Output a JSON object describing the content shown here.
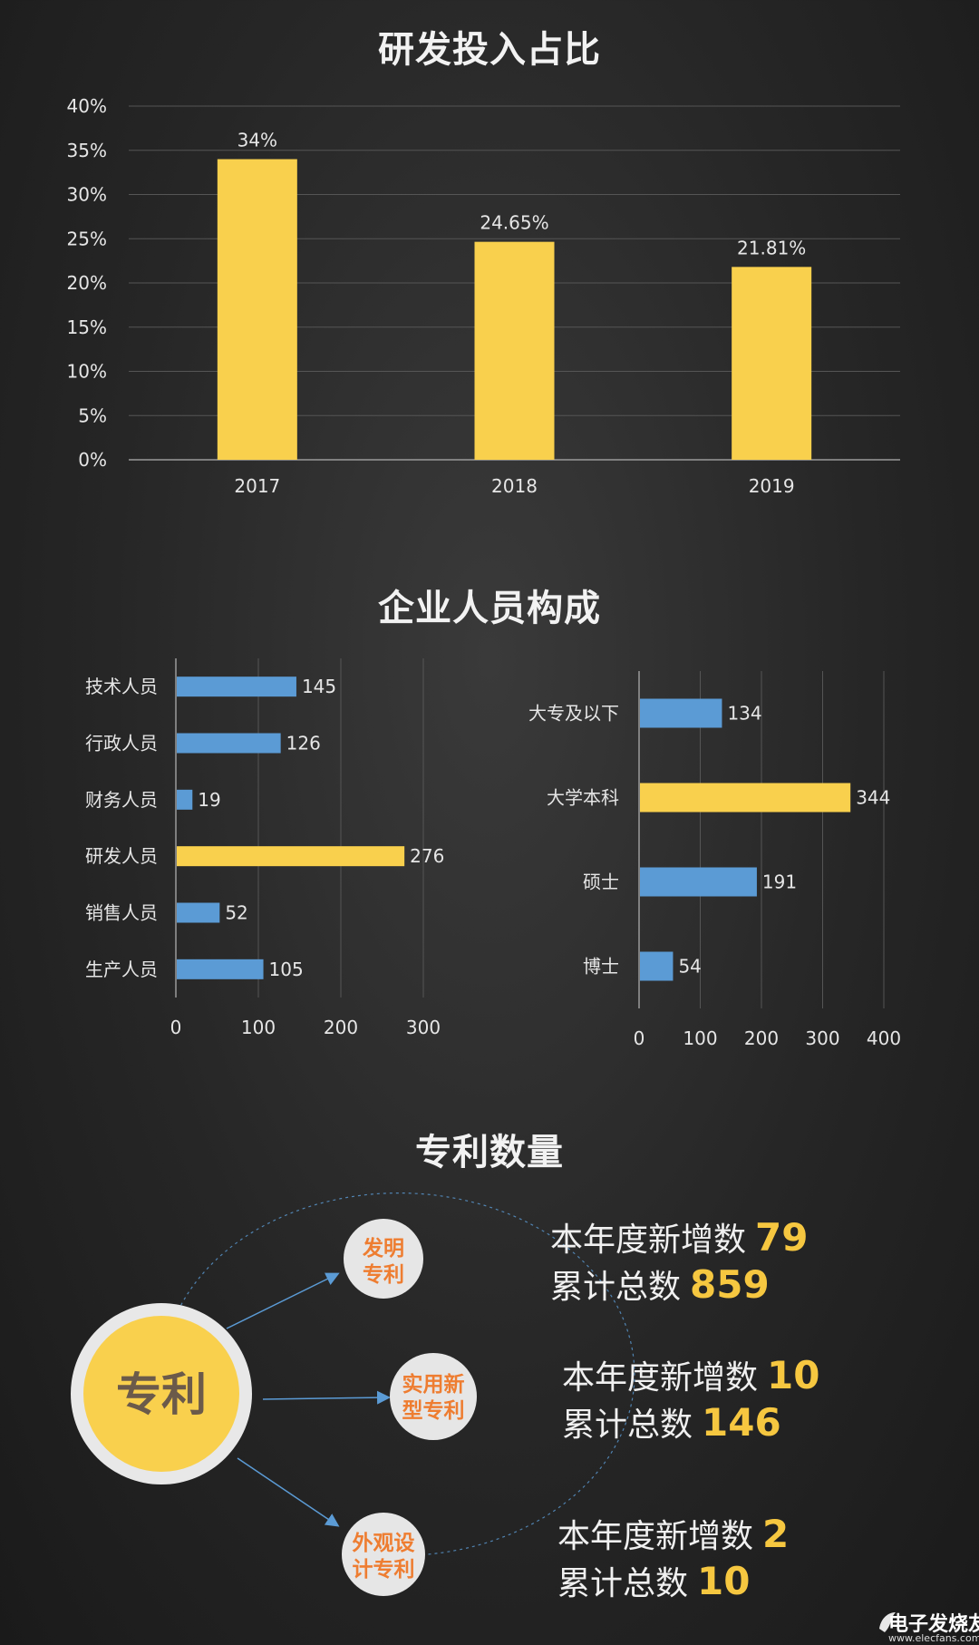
{
  "titles": {
    "rd_ratio": "研发投入占比",
    "staff": "企业人员构成",
    "patents": "专利数量"
  },
  "colors": {
    "yellow": "#f9d04d",
    "blue": "#5b9bd5",
    "accent_number": "#f6c740",
    "center_circle": "#f9d04d",
    "node_text": "#ee7d31"
  },
  "chart_data": [
    {
      "type": "bar",
      "title": "研发投入占比",
      "categories": [
        "2017",
        "2018",
        "2019"
      ],
      "values": [
        34,
        24.65,
        21.81
      ],
      "data_labels": [
        "34%",
        "24.65%",
        "21.81%"
      ],
      "ylim": [
        0,
        40
      ],
      "yticks": [
        0,
        5,
        10,
        15,
        20,
        25,
        30,
        35,
        40
      ],
      "ytick_labels": [
        "0%",
        "5%",
        "10%",
        "15%",
        "20%",
        "25%",
        "30%",
        "35%",
        "40%"
      ],
      "grid": true
    },
    {
      "type": "bar",
      "orientation": "horizontal",
      "categories": [
        "技术人员",
        "行政人员",
        "财务人员",
        "研发人员",
        "销售人员",
        "生产人员"
      ],
      "values": [
        145,
        126,
        19,
        276,
        52,
        105
      ],
      "highlight": [
        "研发人员"
      ],
      "xlim": [
        0,
        300
      ],
      "xticks": [
        0,
        100,
        200,
        300
      ],
      "grid": true
    },
    {
      "type": "bar",
      "orientation": "horizontal",
      "categories": [
        "大专及以下",
        "大学本科",
        "硕士",
        "博士"
      ],
      "values": [
        134,
        344,
        191,
        54
      ],
      "highlight": [
        "大学本科"
      ],
      "xlim": [
        0,
        400
      ],
      "xticks": [
        0,
        100,
        200,
        300,
        400
      ],
      "grid": true
    }
  ],
  "patents": {
    "center_label": "专利",
    "new_label": "本年度新增数",
    "total_label": "累计总数",
    "items": [
      {
        "name_line1": "发明",
        "name_line2": "专利",
        "new": "79",
        "total": "859"
      },
      {
        "name_line1": "实用新",
        "name_line2": "型专利",
        "new": "10",
        "total": "146"
      },
      {
        "name_line1": "外观设",
        "name_line2": "计专利",
        "new": "2",
        "total": "10"
      }
    ]
  },
  "watermark": {
    "name": "电子发烧友",
    "url": "www.elecfans.com"
  }
}
